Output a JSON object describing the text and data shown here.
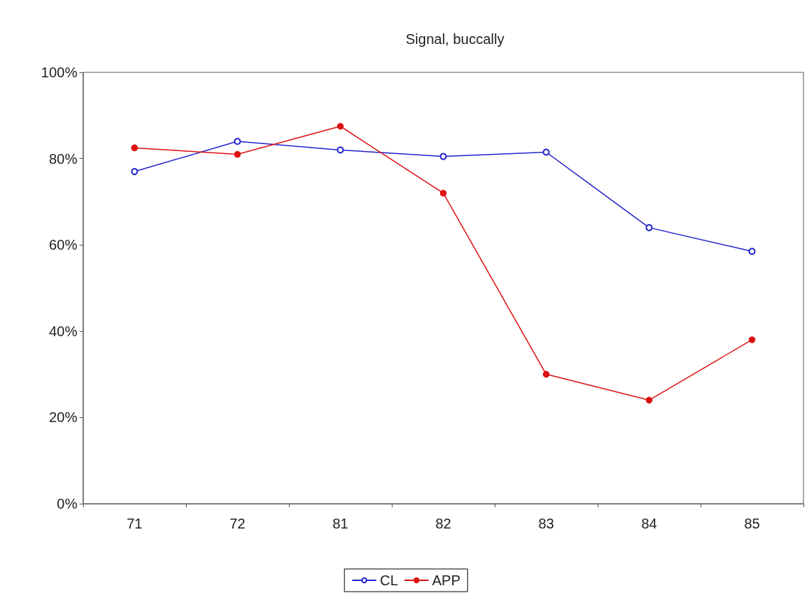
{
  "chart_data": {
    "type": "line",
    "title": "Signal, buccally",
    "categories": [
      "71",
      "72",
      "81",
      "82",
      "83",
      "84",
      "85"
    ],
    "series": [
      {
        "name": "CL",
        "color": "#2222cc",
        "values": [
          77,
          84,
          82,
          80.5,
          81.5,
          64,
          58.5
        ]
      },
      {
        "name": "APP",
        "color": "#dd1111",
        "values": [
          82.5,
          81,
          87.5,
          72,
          30,
          24,
          38
        ]
      }
    ],
    "ylim": [
      0,
      100
    ],
    "yticks": [
      {
        "value": 0,
        "label": "0%"
      },
      {
        "value": 20,
        "label": "20%"
      },
      {
        "value": 40,
        "label": "40%"
      },
      {
        "value": 60,
        "label": "60%"
      },
      {
        "value": 80,
        "label": "80%"
      },
      {
        "value": 100,
        "label": "100%"
      }
    ],
    "grid": false,
    "legend": "bottom",
    "marker": "circle",
    "line_style": "solid"
  }
}
